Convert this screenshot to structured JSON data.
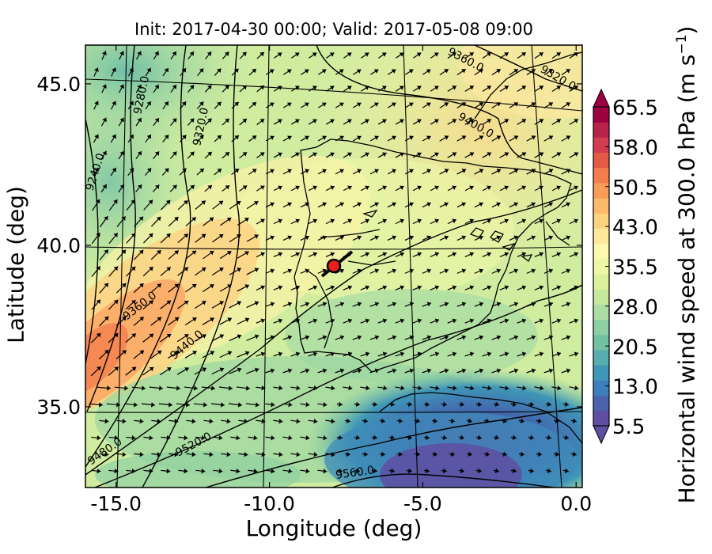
{
  "title": "Init: 2017-04-30 00:00; Valid: 2017-05-08 09:00",
  "xlabel": "Longitude (deg)",
  "ylabel": "Latitude (deg)",
  "colorbar_label": "Horizontal wind speed at 300.0 hPa (m s",
  "colorbar_label_exp": "−1",
  "colorbar_label_end": ")",
  "chart_data": {
    "type": "heatmap",
    "xlim": [
      -16.0,
      0.2
    ],
    "ylim": [
      32.5,
      46.2
    ],
    "x_ticks": [
      -15.0,
      -10.0,
      -5.0,
      0.0
    ],
    "x_tick_labels": [
      "-15.0",
      "-10.0",
      "-5.0",
      "0.0"
    ],
    "y_ticks": [
      35.0,
      40.0,
      45.0
    ],
    "y_tick_labels": [
      "35.0",
      "40.0",
      "45.0"
    ],
    "colorbar": {
      "min": 5.5,
      "max": 65.5,
      "ticks": [
        "5.5",
        "13.0",
        "20.5",
        "28.0",
        "35.5",
        "43.0",
        "50.5",
        "58.0",
        "65.5"
      ],
      "colors": [
        "#5e4fa2",
        "#4b63ac",
        "#3d7fba",
        "#3f96b7",
        "#57aeae",
        "#72c1a5",
        "#8ed0a3",
        "#abdda4",
        "#c5e89f",
        "#dcf09c",
        "#eef7a6",
        "#fbf8b0",
        "#fee99a",
        "#fed380",
        "#fdba6b",
        "#fa9b58",
        "#f47d4d",
        "#e45a48",
        "#d43d4f",
        "#b82349",
        "#9e0142"
      ],
      "extend": "both"
    },
    "contour_labels": [
      "9280.0",
      "9320.0",
      "9240.0",
      "9360.0",
      "9440.0",
      "9480.0",
      "9520.0",
      "9560.0",
      "9360.0",
      "9400.0",
      "9320.0"
    ],
    "marker": {
      "lon": -7.6,
      "lat": 39.3,
      "color": "#e8201b"
    }
  }
}
